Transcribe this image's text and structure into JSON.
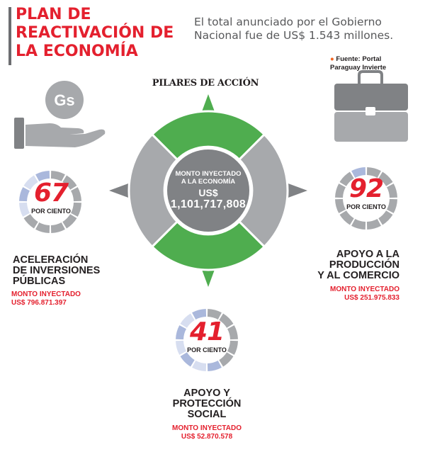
{
  "header": {
    "title_lines": [
      "PLAN DE",
      "REACTIVACIÓN DE",
      "LA ECONOMÍA"
    ],
    "intro_lines": [
      "El total anunciado por el Gobierno",
      "Nacional fue de US$ 1.543 millones."
    ],
    "source_lines": [
      "Fuente: Portal",
      "Paraguay Invierte"
    ]
  },
  "pillars_title": "PILARES DE ACCIÓN",
  "center": {
    "label_lines": [
      "MONTO INYECTADO",
      "A LA ECONOMÍA"
    ],
    "currency": "US$",
    "amount": "1,101,717,808"
  },
  "pillars": [
    {
      "percent": "67",
      "percent_value": 67,
      "percent_label": "POR CIENTO",
      "name_lines": [
        "ACELERACIÓN",
        "DE INVERSIONES",
        "PÚBLICAS"
      ],
      "invested_label": "MONTO INYECTADO",
      "invested_amount": "US$ 796.871.397"
    },
    {
      "percent": "92",
      "percent_value": 92,
      "percent_label": "POR CIENTO",
      "name_lines": [
        "APOYO A LA",
        "PRODUCCIÓN",
        "Y AL COMERCIO"
      ],
      "invested_label": "MONTO INYECTADO",
      "invested_amount": "US$ 251.975.833"
    },
    {
      "percent": "41",
      "percent_value": 41,
      "percent_label": "POR CIENTO",
      "name_lines": [
        "APOYO Y",
        "PROTECCIÓN",
        "SOCIAL"
      ],
      "invested_label": "MONTO INYECTADO",
      "invested_amount": "US$ 52.870.578"
    }
  ],
  "icons": {
    "money_hand": "money-hand-icon",
    "coin_symbol": "Gs",
    "briefcase": "briefcase-icon"
  },
  "colors": {
    "red": "#e4202e",
    "green": "#4fad4f",
    "gray": "#a7a9ac",
    "dark_gray": "#808285",
    "ring_filled": "#a7a9ac",
    "ring_light": "#d7def0",
    "ring_blue": "#aab8dc"
  }
}
